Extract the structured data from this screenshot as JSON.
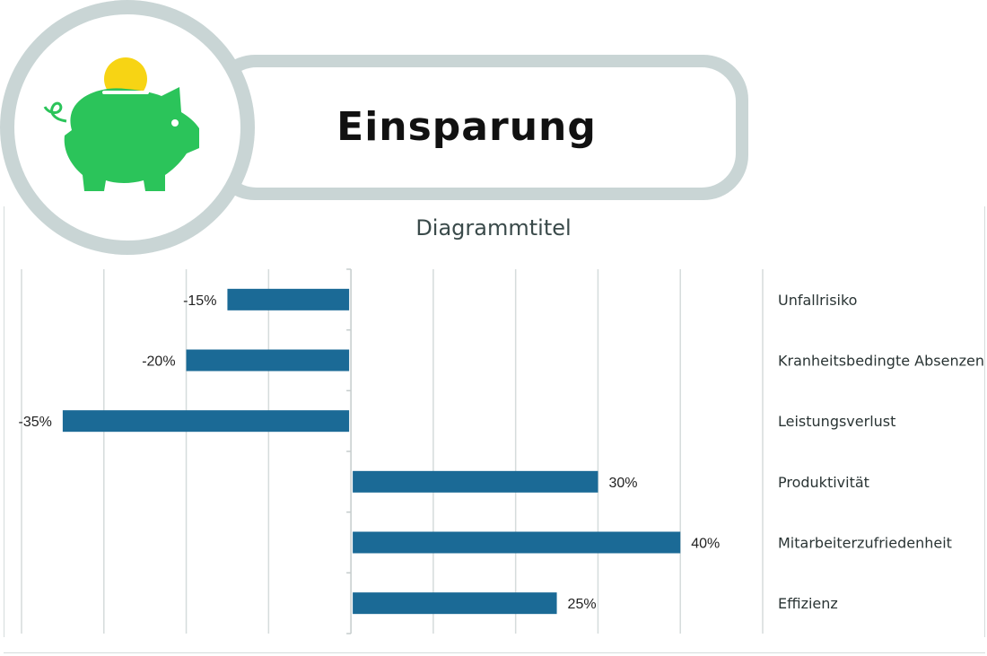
{
  "header": {
    "title": "Einsparung",
    "icon": "piggy-bank-icon",
    "colors": {
      "piggy": "#2bc45a",
      "coin": "#f7d414",
      "frame": "#c9d5d5"
    }
  },
  "chart_data": {
    "type": "bar",
    "orientation": "horizontal",
    "title": "Diagrammtitel",
    "xlim": [
      -40,
      50
    ],
    "grid": true,
    "bar_color": "#1b6a96",
    "categories": [
      "Unfallrisiko",
      "Kranheitsbedingte Absenzen",
      "Leistungsverlust",
      "Produktivität",
      "Mitarbeiterzufriedenheit",
      "Effizienz"
    ],
    "values": [
      -15,
      -20,
      -35,
      30,
      40,
      25
    ],
    "data_labels": [
      "-15%",
      "-20%",
      "-35%",
      "30%",
      "40%",
      "25%"
    ]
  }
}
